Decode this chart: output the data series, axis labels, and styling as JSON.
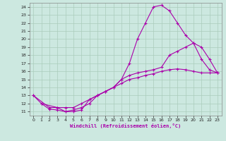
{
  "xlabel": "Windchill (Refroidissement éolien,°C)",
  "ylabel": "",
  "bg_color": "#cce8e0",
  "line_color": "#aa00aa",
  "grid_color": "#aaccbb",
  "xlim": [
    -0.5,
    23.5
  ],
  "ylim": [
    10.5,
    24.5
  ],
  "xticks": [
    0,
    1,
    2,
    3,
    4,
    5,
    6,
    7,
    8,
    9,
    10,
    11,
    12,
    13,
    14,
    15,
    16,
    17,
    18,
    19,
    20,
    21,
    22,
    23
  ],
  "yticks": [
    11,
    12,
    13,
    14,
    15,
    16,
    17,
    18,
    19,
    20,
    21,
    22,
    23,
    24
  ],
  "line1_x": [
    0,
    1,
    2,
    3,
    4,
    5,
    6,
    7,
    8,
    9,
    10,
    11,
    12,
    13,
    14,
    15,
    16,
    17,
    18,
    19,
    20,
    21,
    22,
    23
  ],
  "line1_y": [
    13,
    12,
    11.3,
    11.2,
    11.0,
    11.0,
    11.2,
    12.5,
    13.0,
    13.5,
    14.0,
    15.0,
    17.0,
    20.0,
    22.0,
    24.0,
    24.2,
    23.5,
    22.0,
    20.5,
    19.5,
    17.5,
    16.2,
    15.8
  ],
  "line2_x": [
    0,
    2,
    3,
    4,
    5,
    6,
    7,
    8,
    9,
    10,
    11,
    12,
    13,
    14,
    15,
    16,
    17,
    18,
    19,
    20,
    21,
    22,
    23
  ],
  "line2_y": [
    13,
    11.5,
    11.5,
    11.5,
    11.5,
    12.0,
    12.5,
    13.0,
    13.5,
    14.0,
    15.0,
    15.5,
    15.8,
    16.0,
    16.2,
    16.5,
    18.0,
    18.5,
    19.0,
    19.5,
    19.0,
    17.5,
    15.8
  ],
  "line3_x": [
    1,
    3,
    4,
    5,
    6,
    7,
    8,
    9,
    10,
    11,
    12,
    13,
    14,
    15,
    16,
    17,
    18,
    19,
    20,
    21,
    22,
    23
  ],
  "line3_y": [
    12,
    11.5,
    11.0,
    11.2,
    11.5,
    12.0,
    13.0,
    13.5,
    14.0,
    14.5,
    15.0,
    15.2,
    15.5,
    15.7,
    16.0,
    16.2,
    16.3,
    16.2,
    16.0,
    15.8,
    15.8,
    15.8
  ]
}
